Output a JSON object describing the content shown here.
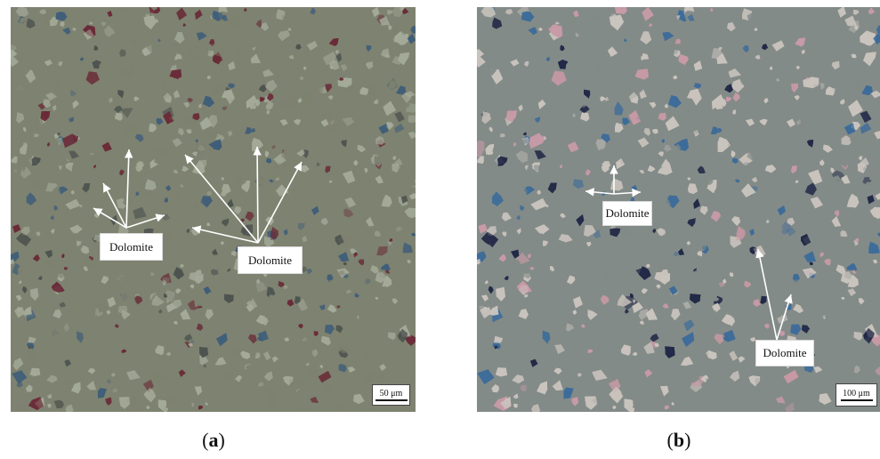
{
  "panels": [
    {
      "id": "a",
      "labels": [
        "Dolomite",
        "Dolomite"
      ],
      "scale_bar": "50 μm",
      "caption_open": "(",
      "caption_letter": "a",
      "caption_close": ")",
      "colors": {
        "base": "#7e8270",
        "light": "#a4aa98",
        "dark": "#4d5450",
        "blue": "#3f5e7a",
        "red": "#6a2b38"
      }
    },
    {
      "id": "b",
      "labels": [
        "Dolomite",
        "Dolomite"
      ],
      "scale_bar": "100 μm",
      "caption_open": "(",
      "caption_letter": "b",
      "caption_close": ")",
      "colors": {
        "base": "#838b88",
        "light": "#c9c3bd",
        "dark": "#232a48",
        "blue": "#3e6c9a",
        "pink": "#c79aa6"
      }
    }
  ]
}
